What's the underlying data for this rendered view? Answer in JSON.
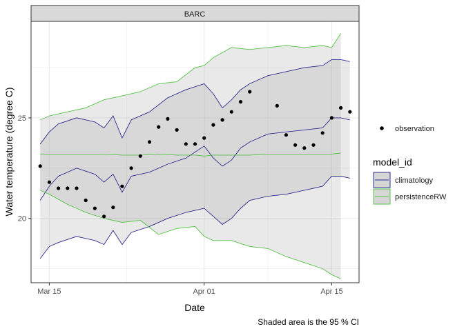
{
  "chart_data": {
    "type": "line",
    "facet_title": "BARC",
    "xlabel": "Date",
    "ylabel": "Water temperature (degree C)",
    "caption": "Shaded area is the 95 % CI",
    "xlim": [
      "2021-03-13",
      "2021-04-18"
    ],
    "ylim": [
      16.8,
      29.8
    ],
    "x_ticks": [
      {
        "date": "2021-03-15",
        "label": "Mar 15"
      },
      {
        "date": "2021-04-01",
        "label": "Apr 01"
      },
      {
        "date": "2021-04-15",
        "label": "Apr 15"
      }
    ],
    "y_ticks": [
      {
        "value": 20,
        "label": "20"
      },
      {
        "value": 25,
        "label": "25"
      }
    ],
    "grid": true,
    "legend_position": "right",
    "legend": {
      "observation_title": "",
      "observation_label": "observation",
      "model_title": "model_id",
      "model_labels": [
        "climatology",
        "persistenceRW"
      ]
    },
    "colors": {
      "climatology": "#2b2b8c",
      "persistenceRW": "#56c247",
      "observation": "#000000",
      "ribbon": "#999999",
      "panel_border": "#333333",
      "strip_fill": "#d9d9d9",
      "grid": "#ebebeb"
    },
    "observation": [
      {
        "date": "2021-03-14",
        "value": 22.6
      },
      {
        "date": "2021-03-15",
        "value": 21.8
      },
      {
        "date": "2021-03-16",
        "value": 21.5
      },
      {
        "date": "2021-03-17",
        "value": 21.5
      },
      {
        "date": "2021-03-18",
        "value": 21.5
      },
      {
        "date": "2021-03-19",
        "value": 20.9
      },
      {
        "date": "2021-03-20",
        "value": 20.5
      },
      {
        "date": "2021-03-21",
        "value": 20.1
      },
      {
        "date": "2021-03-22",
        "value": 20.55
      },
      {
        "date": "2021-03-23",
        "value": 21.6
      },
      {
        "date": "2021-03-24",
        "value": 22.5
      },
      {
        "date": "2021-03-25",
        "value": 23.1
      },
      {
        "date": "2021-03-26",
        "value": 23.8
      },
      {
        "date": "2021-03-27",
        "value": 24.55
      },
      {
        "date": "2021-03-28",
        "value": 24.95
      },
      {
        "date": "2021-03-29",
        "value": 24.4
      },
      {
        "date": "2021-03-30",
        "value": 23.7
      },
      {
        "date": "2021-03-31",
        "value": 23.7
      },
      {
        "date": "2021-04-01",
        "value": 24.0
      },
      {
        "date": "2021-04-02",
        "value": 24.65
      },
      {
        "date": "2021-04-03",
        "value": 24.9
      },
      {
        "date": "2021-04-04",
        "value": 25.3
      },
      {
        "date": "2021-04-05",
        "value": 25.8
      },
      {
        "date": "2021-04-06",
        "value": 26.3
      },
      {
        "date": "2021-04-09",
        "value": 25.6
      },
      {
        "date": "2021-04-10",
        "value": 24.15
      },
      {
        "date": "2021-04-11",
        "value": 23.65
      },
      {
        "date": "2021-04-12",
        "value": 23.5
      },
      {
        "date": "2021-04-13",
        "value": 23.65
      },
      {
        "date": "2021-04-14",
        "value": 24.25
      },
      {
        "date": "2021-04-15",
        "value": 25.0
      },
      {
        "date": "2021-04-16",
        "value": 25.5
      },
      {
        "date": "2021-04-17",
        "value": 25.3
      }
    ],
    "series": [
      {
        "name": "climatology",
        "dates": [
          "2021-03-14",
          "2021-03-15",
          "2021-03-16",
          "2021-03-18",
          "2021-03-20",
          "2021-03-21",
          "2021-03-22",
          "2021-03-23",
          "2021-03-24",
          "2021-03-26",
          "2021-03-28",
          "2021-03-30",
          "2021-04-01",
          "2021-04-02",
          "2021-04-03",
          "2021-04-04",
          "2021-04-05",
          "2021-04-06",
          "2021-04-08",
          "2021-04-10",
          "2021-04-12",
          "2021-04-14",
          "2021-04-15",
          "2021-04-16",
          "2021-04-17"
        ],
        "mean": [
          20.9,
          21.6,
          22.1,
          22.5,
          22.2,
          21.8,
          22.2,
          21.3,
          22.1,
          22.3,
          22.7,
          23.0,
          23.6,
          23.0,
          22.6,
          22.9,
          23.5,
          23.8,
          24.2,
          24.3,
          24.4,
          24.5,
          25.0,
          25.0,
          24.9
        ],
        "lower": [
          18.0,
          18.6,
          18.8,
          19.1,
          18.9,
          18.7,
          19.4,
          18.7,
          19.3,
          19.6,
          20.0,
          20.3,
          20.5,
          20.1,
          19.7,
          20.0,
          20.5,
          20.9,
          21.1,
          21.2,
          21.4,
          21.6,
          22.1,
          22.1,
          22.0
        ],
        "upper": [
          23.7,
          24.3,
          24.7,
          25.0,
          24.8,
          24.5,
          25.1,
          24.0,
          24.9,
          25.3,
          26.0,
          26.4,
          26.7,
          26.2,
          25.5,
          25.9,
          26.4,
          26.7,
          27.1,
          27.3,
          27.5,
          27.6,
          27.9,
          27.9,
          27.8
        ]
      },
      {
        "name": "persistenceRW",
        "dates": [
          "2021-03-14",
          "2021-03-15",
          "2021-03-17",
          "2021-03-19",
          "2021-03-21",
          "2021-03-23",
          "2021-03-25",
          "2021-03-27",
          "2021-03-29",
          "2021-03-31",
          "2021-04-01",
          "2021-04-02",
          "2021-04-04",
          "2021-04-06",
          "2021-04-08",
          "2021-04-10",
          "2021-04-12",
          "2021-04-14",
          "2021-04-15",
          "2021-04-16"
        ],
        "mean": [
          23.2,
          23.2,
          23.2,
          23.2,
          23.2,
          23.15,
          23.15,
          23.2,
          23.15,
          23.15,
          23.1,
          23.15,
          23.15,
          23.15,
          23.2,
          23.2,
          23.2,
          23.2,
          23.2,
          23.25
        ],
        "lower": [
          21.4,
          21.2,
          20.7,
          20.3,
          20.0,
          19.8,
          19.9,
          19.2,
          19.5,
          19.6,
          19.1,
          18.9,
          18.9,
          18.6,
          18.5,
          18.1,
          17.8,
          17.5,
          17.2,
          17.0
        ],
        "upper": [
          24.9,
          25.1,
          25.3,
          25.5,
          25.9,
          26.1,
          26.3,
          26.7,
          26.8,
          27.5,
          27.6,
          28.0,
          28.5,
          28.4,
          28.5,
          28.6,
          28.5,
          28.6,
          28.5,
          29.2
        ]
      }
    ]
  }
}
